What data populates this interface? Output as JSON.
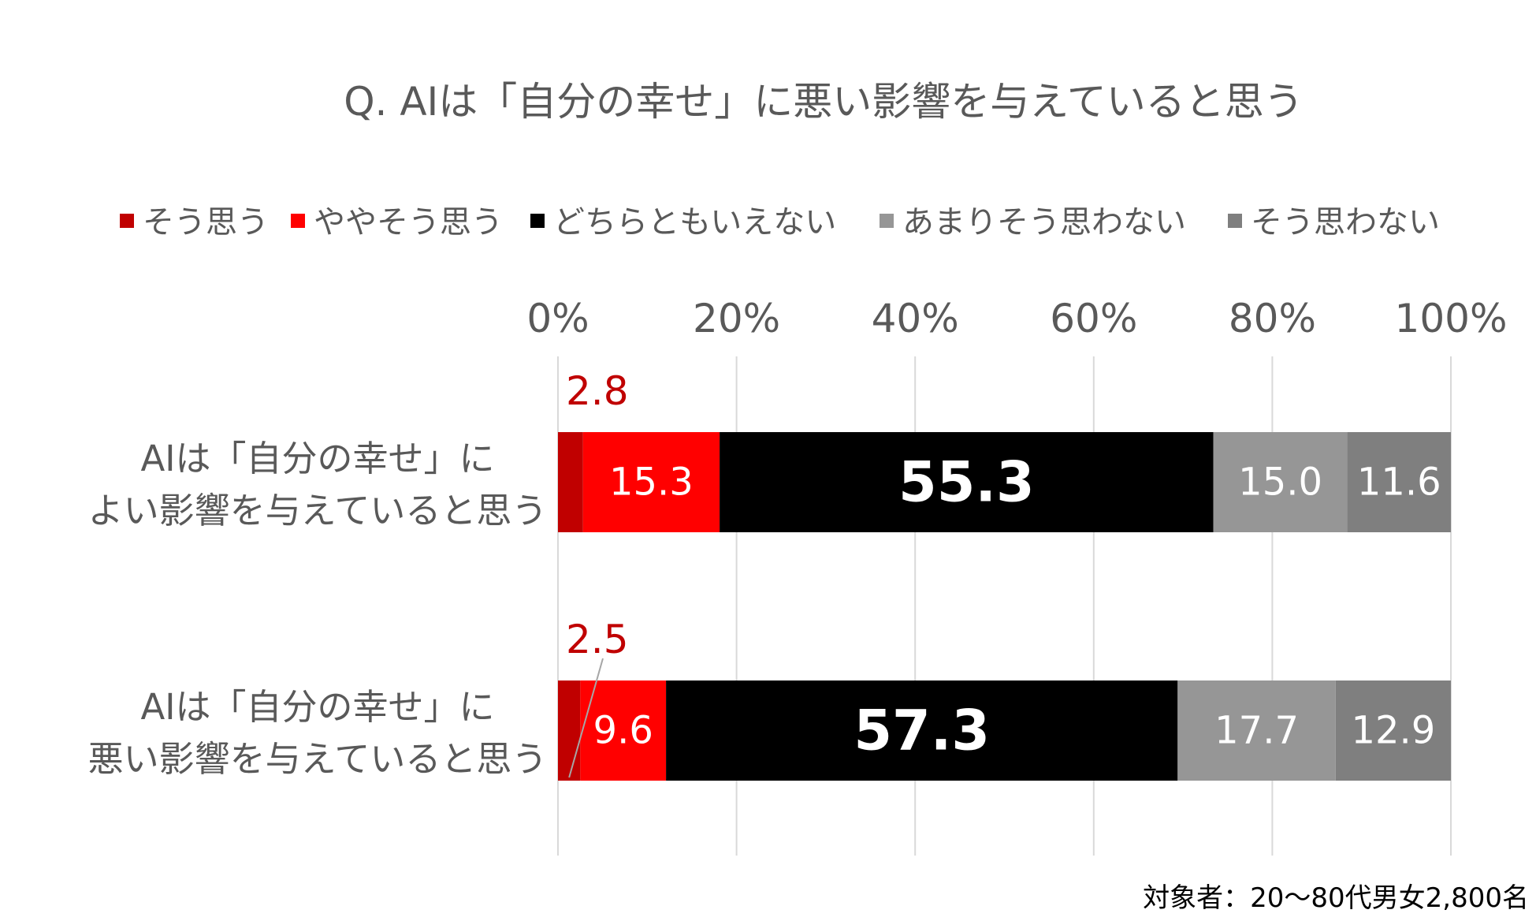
{
  "chart_data": {
    "type": "bar",
    "orientation": "horizontal",
    "stacked": true,
    "percent": true,
    "title": "Q. AIは「自分の幸せ」に悪い影響を与えていると思う",
    "note": "対象者：20～80代男女2,800名",
    "legend_position": "top",
    "grid": true,
    "xlim": [
      0,
      100
    ],
    "x_ticks": [
      "0%",
      "20%",
      "40%",
      "60%",
      "80%",
      "100%"
    ],
    "categories": [
      [
        "AIは「自分の幸せ」に",
        "よい影響を与えていると思う"
      ],
      [
        "AIは「自分の幸せ」に",
        "悪い影響を与えていると思う"
      ]
    ],
    "series": [
      {
        "name": "そう思う",
        "color": "#c00000",
        "values": [
          2.8,
          2.5
        ],
        "labels": [
          "2.8",
          "2.5"
        ]
      },
      {
        "name": "ややそう思う",
        "color": "#ff0000",
        "values": [
          15.3,
          9.6
        ],
        "labels": [
          "15.3",
          "9.6"
        ]
      },
      {
        "name": "どちらともいえない",
        "color": "#000000",
        "values": [
          55.3,
          57.3
        ],
        "labels": [
          "55.3",
          "57.3"
        ]
      },
      {
        "name": "あまりそう思わない",
        "color": "#969696",
        "values": [
          15.0,
          17.7
        ],
        "labels": [
          "15.0",
          "17.7"
        ]
      },
      {
        "name": "そう思わない",
        "color": "#7f7f7f",
        "values": [
          11.6,
          12.9
        ],
        "labels": [
          "11.6",
          "12.9"
        ]
      }
    ]
  }
}
